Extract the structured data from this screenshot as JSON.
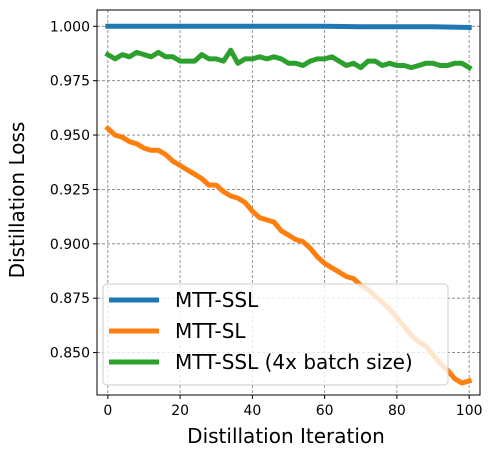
{
  "chart_data": {
    "type": "line",
    "title": "",
    "xlabel": "Distillation Iteration",
    "ylabel": "Distillation Loss",
    "xlim": [
      -3,
      103
    ],
    "ylim": [
      0.8305,
      1.0075
    ],
    "xticks": [
      0,
      20,
      40,
      60,
      80,
      100
    ],
    "xtick_labels": [
      "0",
      "20",
      "40",
      "60",
      "80",
      "100"
    ],
    "yticks": [
      0.85,
      0.875,
      0.9,
      0.925,
      0.95,
      0.975,
      1.0
    ],
    "ytick_labels": [
      "0.850",
      "0.875",
      "0.900",
      "0.925",
      "0.950",
      "0.975",
      "1.000"
    ],
    "grid": true,
    "legend_position": "lower-left",
    "series": [
      {
        "name": "MTT-SSL",
        "color": "#1f77b4",
        "x": [
          0,
          10,
          20,
          30,
          40,
          50,
          60,
          70,
          80,
          90,
          100
        ],
        "y": [
          1.0,
          1.0,
          1.0,
          1.0,
          1.0,
          1.0,
          1.0,
          0.9998,
          0.9998,
          0.9998,
          0.9995
        ]
      },
      {
        "name": "MTT-SL",
        "color": "#ff7f0e",
        "x": [
          0,
          2,
          4,
          6,
          8,
          10,
          12,
          14,
          16,
          18,
          20,
          22,
          24,
          26,
          28,
          30,
          32,
          34,
          36,
          38,
          40,
          42,
          44,
          46,
          48,
          50,
          52,
          54,
          56,
          58,
          60,
          62,
          64,
          66,
          68,
          70,
          72,
          74,
          76,
          78,
          80,
          82,
          84,
          86,
          88,
          90,
          92,
          94,
          96,
          98,
          100
        ],
        "y": [
          0.953,
          0.95,
          0.949,
          0.947,
          0.946,
          0.944,
          0.943,
          0.943,
          0.941,
          0.938,
          0.936,
          0.934,
          0.932,
          0.93,
          0.927,
          0.927,
          0.924,
          0.922,
          0.921,
          0.919,
          0.915,
          0.912,
          0.911,
          0.91,
          0.906,
          0.904,
          0.902,
          0.901,
          0.898,
          0.894,
          0.891,
          0.889,
          0.887,
          0.885,
          0.884,
          0.881,
          0.879,
          0.876,
          0.873,
          0.87,
          0.866,
          0.862,
          0.858,
          0.855,
          0.853,
          0.849,
          0.845,
          0.842,
          0.838,
          0.836,
          0.837
        ]
      },
      {
        "name": "MTT-SSL (4x batch size)",
        "color": "#2ca02c",
        "x": [
          0,
          2,
          4,
          6,
          8,
          10,
          12,
          14,
          16,
          18,
          20,
          22,
          24,
          26,
          28,
          30,
          32,
          34,
          36,
          38,
          40,
          42,
          44,
          46,
          48,
          50,
          52,
          54,
          56,
          58,
          60,
          62,
          64,
          66,
          68,
          70,
          72,
          74,
          76,
          78,
          80,
          82,
          84,
          86,
          88,
          90,
          92,
          94,
          96,
          98,
          100
        ],
        "y": [
          0.987,
          0.985,
          0.987,
          0.986,
          0.988,
          0.987,
          0.986,
          0.988,
          0.986,
          0.986,
          0.984,
          0.984,
          0.984,
          0.987,
          0.985,
          0.985,
          0.984,
          0.989,
          0.983,
          0.985,
          0.985,
          0.986,
          0.985,
          0.986,
          0.985,
          0.983,
          0.983,
          0.982,
          0.984,
          0.985,
          0.985,
          0.986,
          0.984,
          0.982,
          0.983,
          0.981,
          0.984,
          0.984,
          0.982,
          0.983,
          0.982,
          0.982,
          0.981,
          0.982,
          0.983,
          0.983,
          0.982,
          0.982,
          0.983,
          0.983,
          0.981
        ]
      }
    ]
  }
}
